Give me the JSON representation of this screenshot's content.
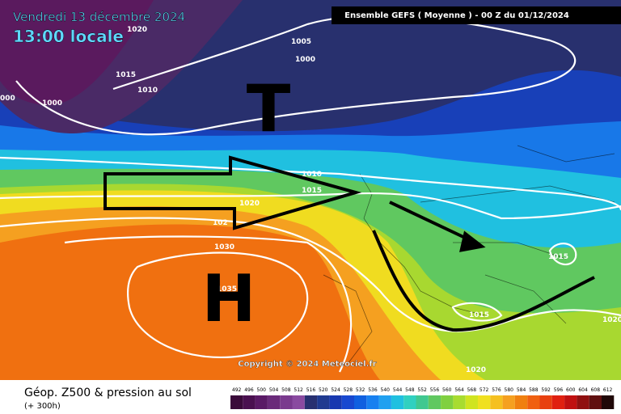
{
  "header": {
    "date": "Vendredi 13 décembre 2024",
    "time": "13:00 locale",
    "run": "Ensemble GEFS  ( Moyenne )  -  00 Z du 01/12/2024"
  },
  "copyright": "Copyright © 2024 Meteociel.fr",
  "footer": {
    "title": "Géop. Z500 & pression au sol",
    "lead": "(+ 300h)"
  },
  "systems": {
    "low": "T",
    "high": "H"
  },
  "isobars": [
    "1020",
    "1015",
    "1010",
    "1005",
    "1000",
    "1000",
    "000",
    "1010",
    "1015",
    "1020",
    "102",
    "1030",
    "1035",
    "1015",
    "1015",
    "1020",
    "1010",
    "1020"
  ],
  "legend": {
    "labels": [
      492,
      496,
      500,
      504,
      508,
      512,
      516,
      520,
      524,
      528,
      532,
      536,
      540,
      544,
      548,
      552,
      556,
      560,
      564,
      568,
      572,
      576,
      580,
      584,
      588,
      592,
      596,
      600,
      604,
      608,
      612
    ],
    "colors": [
      "#3a0a3a",
      "#4a1050",
      "#5a1a66",
      "#6a2a7a",
      "#7a3a8e",
      "#8a4aa0",
      "#283070",
      "#203a90",
      "#1838b0",
      "#1848d0",
      "#1060e0",
      "#1880f0",
      "#20a0f0",
      "#20c0e0",
      "#30d0c0",
      "#40c890",
      "#60c860",
      "#80d040",
      "#a8dc30",
      "#d0e420",
      "#f0e020",
      "#f5c020",
      "#f5a020",
      "#f08010",
      "#f06010",
      "#e84010",
      "#e02010",
      "#c01010",
      "#901010",
      "#601010",
      "#200808"
    ]
  }
}
